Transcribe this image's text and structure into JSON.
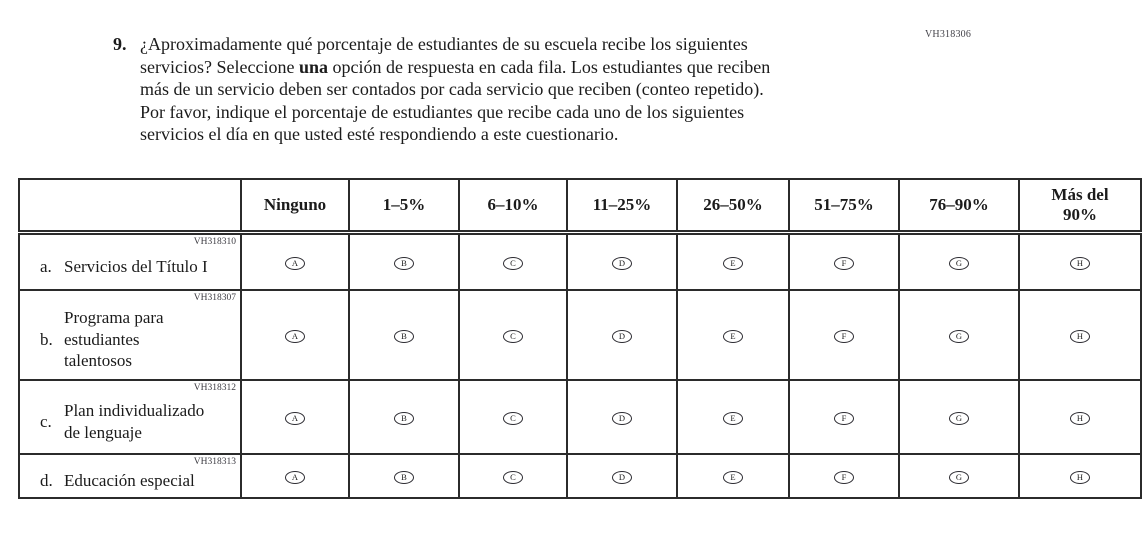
{
  "page": {
    "code": "VH318306"
  },
  "question": {
    "number": "9.",
    "lines": [
      {
        "pre": "¿Aproximadamente qué porcentaje de estudiantes de su escuela recibe los siguientes",
        "bold": "",
        "post": ""
      },
      {
        "pre": "servicios? Seleccione ",
        "bold": "una",
        "post": " opción de respuesta en cada fila. Los estudiantes que reciben"
      },
      {
        "pre": "más de un servicio deben ser contados por cada servicio que reciben (conteo repetido).",
        "bold": "",
        "post": ""
      },
      {
        "pre": "Por favor, indique el porcentaje de estudiantes que recibe cada uno de los siguientes",
        "bold": "",
        "post": ""
      },
      {
        "pre": "servicios el día en que usted esté respondiendo a este cuestionario.",
        "bold": "",
        "post": ""
      }
    ]
  },
  "table": {
    "headers": [
      "Ninguno",
      "1–5%",
      "6–10%",
      "11–25%",
      "26–50%",
      "51–75%",
      "76–90%",
      "Más del 90%"
    ],
    "option_letters": [
      "A",
      "B",
      "C",
      "D",
      "E",
      "F",
      "G",
      "H"
    ],
    "rows": [
      {
        "code": "VH318310",
        "letter": "a.",
        "label": "Servicios del Título I"
      },
      {
        "code": "VH318307",
        "letter": "b.",
        "label": "Programa para estudiantes talentosos"
      },
      {
        "code": "VH318312",
        "letter": "c.",
        "label": "Plan individualizado de lenguaje"
      },
      {
        "code": "VH318313",
        "letter": "d.",
        "label": "Educación especial"
      }
    ]
  },
  "colors": {
    "text": "#1b1b1b",
    "border": "#2b2b2b",
    "code_text": "#44434a"
  }
}
